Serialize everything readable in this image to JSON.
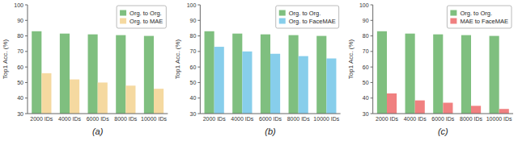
{
  "chart_data": [
    {
      "type": "bar",
      "title": "(a)",
      "categories": [
        "2000 IDs",
        "4000 IDs",
        "6000 IDs",
        "8000 IDs",
        "10000 IDs"
      ],
      "series": [
        {
          "name": "Org. to Org.",
          "color": "#7fbf7f",
          "values": [
            83,
            81.5,
            81,
            80.5,
            80
          ]
        },
        {
          "name": "Org. to MAE",
          "color": "#f5d9a0",
          "values": [
            56,
            52,
            50,
            48,
            46
          ]
        }
      ],
      "ylabel": "Top1 Acc. (%)",
      "ylim": [
        30,
        100
      ],
      "yticks": [
        30,
        40,
        50,
        60,
        70,
        80,
        90,
        100
      ],
      "legend": "upper-right"
    },
    {
      "type": "bar",
      "title": "(b)",
      "categories": [
        "2000 IDs",
        "4000 IDs",
        "6000 IDs",
        "8000 IDs",
        "10000 IDs"
      ],
      "series": [
        {
          "name": "Org. to Org.",
          "color": "#7fbf7f",
          "values": [
            83,
            81.5,
            81,
            80.5,
            80
          ]
        },
        {
          "name": "Org. to FaceMAE",
          "color": "#87ceeb",
          "values": [
            73,
            70,
            68.5,
            67,
            65.5
          ]
        }
      ],
      "ylabel": "Top1 Acc. (%)",
      "ylim": [
        30,
        100
      ],
      "yticks": [
        30,
        40,
        50,
        60,
        70,
        80,
        90,
        100
      ],
      "legend": "upper-right"
    },
    {
      "type": "bar",
      "title": "(c)",
      "categories": [
        "2000 IDs",
        "4000 IDs",
        "6000 IDs",
        "8000 IDs",
        "10000 IDs"
      ],
      "series": [
        {
          "name": "Org. to Org.",
          "color": "#7fbf7f",
          "values": [
            83,
            81.5,
            81,
            80.5,
            80
          ]
        },
        {
          "name": "MAE to FaceMAE",
          "color": "#f08080",
          "values": [
            43,
            38.5,
            37,
            35,
            33
          ]
        }
      ],
      "ylabel": "Top1 Acc. (%)",
      "ylim": [
        30,
        100
      ],
      "yticks": [
        30,
        40,
        50,
        60,
        70,
        80,
        90,
        100
      ],
      "legend": "upper-right"
    }
  ]
}
